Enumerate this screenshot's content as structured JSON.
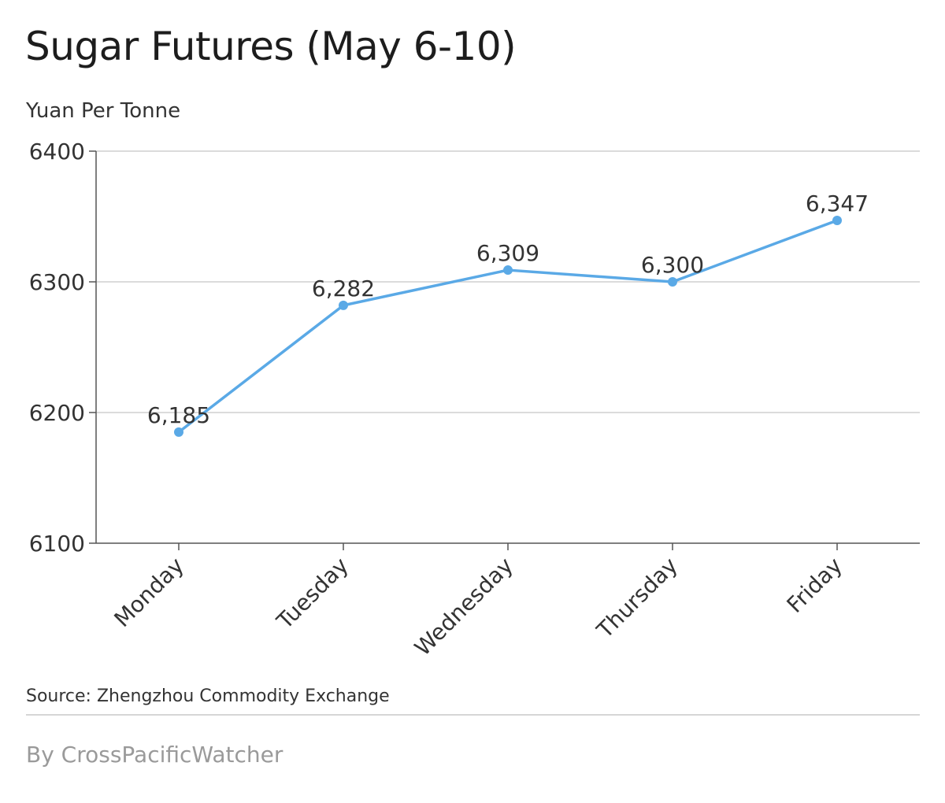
{
  "header": {
    "title": "Sugar Futures (May 6-10)",
    "subtitle": "Yuan Per Tonne"
  },
  "footer": {
    "source": "Source: Zhengzhou Commodity Exchange",
    "byline": "By CrossPacificWatcher"
  },
  "colors": {
    "line": "#5aa9e6",
    "grid": "#cfcfcf",
    "axis": "#555555",
    "text": "#333333"
  },
  "chart_data": {
    "type": "line",
    "title": "Sugar Futures (May 6-10)",
    "ylabel": "Yuan Per Tonne",
    "xlabel": "",
    "categories": [
      "Monday",
      "Tuesday",
      "Wednesday",
      "Thursday",
      "Friday"
    ],
    "values": [
      6185,
      6282,
      6309,
      6300,
      6347
    ],
    "data_labels": [
      "6,185",
      "6,282",
      "6,309",
      "6,300",
      "6,347"
    ],
    "ylim": [
      6100,
      6400
    ],
    "yticks": [
      6100,
      6200,
      6300,
      6400
    ],
    "grid": true
  }
}
